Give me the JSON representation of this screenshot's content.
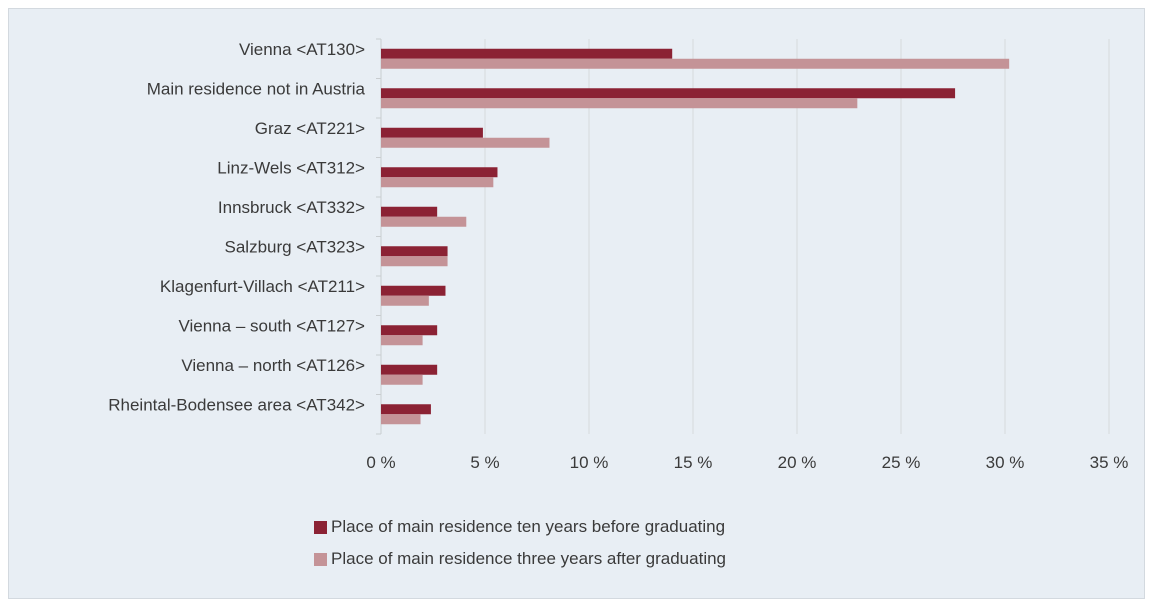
{
  "chart_data": {
    "type": "bar",
    "orientation": "horizontal",
    "categories": [
      "Vienna <AT130>",
      "Main residence not in Austria",
      "Graz <AT221>",
      "Linz-Wels <AT312>",
      "Innsbruck <AT332>",
      "Salzburg <AT323>",
      "Klagenfurt-Villach <AT211>",
      "Vienna – south <AT127>",
      "Vienna – north <AT126>",
      "Rheintal-Bodensee area <AT342>"
    ],
    "series": [
      {
        "name": "Place of main residence ten years before graduating",
        "color": "#8b2234",
        "values": [
          14.0,
          27.6,
          4.9,
          5.6,
          2.7,
          3.2,
          3.1,
          2.7,
          2.7,
          2.4
        ]
      },
      {
        "name": "Place of main residence three years after graduating",
        "color": "#c49397",
        "values": [
          30.2,
          22.9,
          8.1,
          5.4,
          4.1,
          3.2,
          2.3,
          2.0,
          2.0,
          1.9
        ]
      }
    ],
    "xlim": [
      0,
      35
    ],
    "x_ticks": [
      "0 %",
      "5 %",
      "10 %",
      "15 %",
      "20 %",
      "25 %",
      "30 %",
      "35 %"
    ],
    "grid": "vertical",
    "legend_position": "bottom"
  }
}
